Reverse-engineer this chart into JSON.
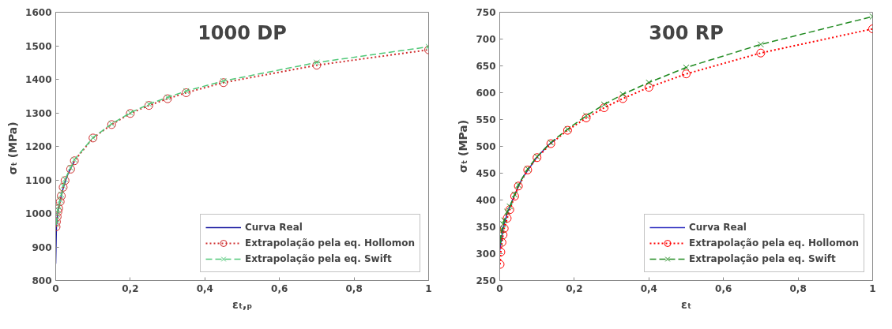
{
  "chart_data": [
    {
      "type": "line",
      "title": "1000 DP",
      "xlabel": "εₜ,ₚ",
      "ylabel": "σₜ  (MPa)",
      "xlim": [
        0,
        1
      ],
      "ylim": [
        800,
        1600
      ],
      "xticks": [
        0,
        {
          "value": 0.2,
          "label": "0,2"
        },
        {
          "value": 0.4,
          "label": "0,4"
        },
        {
          "value": 0.6,
          "label": "0,6"
        },
        {
          "value": 0.8,
          "label": "0,8"
        },
        1
      ],
      "yticks": [
        800,
        900,
        1000,
        1100,
        1200,
        1300,
        1400,
        1500,
        1600
      ],
      "grid": false,
      "legend": "bottom right",
      "series": [
        {
          "name": "Curva Real",
          "color": "#1a1aa0",
          "line_style": "solid",
          "marker": "none",
          "x": [
            0,
            0.002,
            0.005,
            0.01,
            0.02,
            0.03,
            0.04,
            0.05
          ],
          "values": [
            850,
            960,
            1000,
            1030,
            1075,
            1110,
            1135,
            1155
          ]
        },
        {
          "name": "Extrapolação pela eq. Hollomon",
          "color": "#d03030",
          "line_style": "dotted",
          "marker": "circle",
          "x": [
            0.001,
            0.002,
            0.004,
            0.006,
            0.008,
            0.012,
            0.015,
            0.02,
            0.025,
            0.04,
            0.05,
            0.1,
            0.15,
            0.2,
            0.25,
            0.3,
            0.35,
            0.45,
            0.7,
            1.0
          ],
          "values": [
            960,
            975,
            990,
            1005,
            1015,
            1035,
            1052,
            1078,
            1098,
            1132,
            1157,
            1225,
            1265,
            1298,
            1322,
            1342,
            1360,
            1390,
            1442,
            1488
          ]
        },
        {
          "name": "Extrapolação pela eq. Swift",
          "color": "#50c878",
          "line_style": "dashed",
          "marker": "cross",
          "x": [
            0.001,
            0.002,
            0.004,
            0.006,
            0.008,
            0.012,
            0.015,
            0.02,
            0.025,
            0.04,
            0.05,
            0.1,
            0.15,
            0.2,
            0.25,
            0.3,
            0.35,
            0.45,
            0.7,
            1.0
          ],
          "values": [
            968,
            982,
            997,
            1010,
            1020,
            1040,
            1056,
            1082,
            1102,
            1136,
            1160,
            1226,
            1267,
            1300,
            1326,
            1346,
            1365,
            1395,
            1450,
            1497
          ]
        }
      ]
    },
    {
      "type": "line",
      "title": "300 RP",
      "xlabel": "εₜ",
      "ylabel": "σₜ (MPa)",
      "xlim": [
        0,
        1
      ],
      "ylim": [
        250,
        750
      ],
      "xticks": [
        0,
        {
          "value": 0.2,
          "label": "0,2"
        },
        {
          "value": 0.4,
          "label": "0,4"
        },
        {
          "value": 0.6,
          "label": "0,6"
        },
        {
          "value": 0.8,
          "label": "0,8"
        },
        1
      ],
      "yticks": [
        250,
        300,
        350,
        400,
        450,
        500,
        550,
        600,
        650,
        700,
        750
      ],
      "grid": false,
      "legend": "bottom right",
      "series": [
        {
          "name": "Curva Real",
          "color": "#3030c0",
          "line_style": "solid",
          "marker": "none",
          "x": [
            0,
            0.005,
            0.01,
            0.02,
            0.04,
            0.06,
            0.1,
            0.13,
            0.15
          ],
          "values": [
            305,
            330,
            350,
            375,
            410,
            440,
            480,
            502,
            513
          ]
        },
        {
          "name": "Extrapolação pela eq. Hollomon",
          "color": "#ff0000",
          "line_style": "dotted",
          "marker": "circle",
          "x": [
            0.001,
            0.003,
            0.006,
            0.009,
            0.012,
            0.02,
            0.027,
            0.04,
            0.05,
            0.075,
            0.1,
            0.137,
            0.182,
            0.232,
            0.28,
            0.33,
            0.4,
            0.5,
            0.7,
            1.0
          ],
          "values": [
            280,
            303,
            321,
            335,
            347,
            366,
            382,
            407,
            426,
            456,
            479,
            505,
            530,
            553,
            572,
            589,
            610,
            635,
            674,
            719
          ]
        },
        {
          "name": "Extrapolação pela eq. Swift",
          "color": "#228b22",
          "line_style": "dashed",
          "marker": "cross",
          "x": [
            0.001,
            0.003,
            0.006,
            0.009,
            0.012,
            0.02,
            0.027,
            0.04,
            0.05,
            0.075,
            0.1,
            0.137,
            0.182,
            0.232,
            0.28,
            0.33,
            0.4,
            0.5,
            0.7,
            1.0
          ],
          "values": [
            320,
            333,
            345,
            355,
            362,
            378,
            388,
            410,
            428,
            458,
            481,
            507,
            532,
            557,
            578,
            597,
            619,
            647,
            690,
            742
          ]
        }
      ]
    }
  ]
}
